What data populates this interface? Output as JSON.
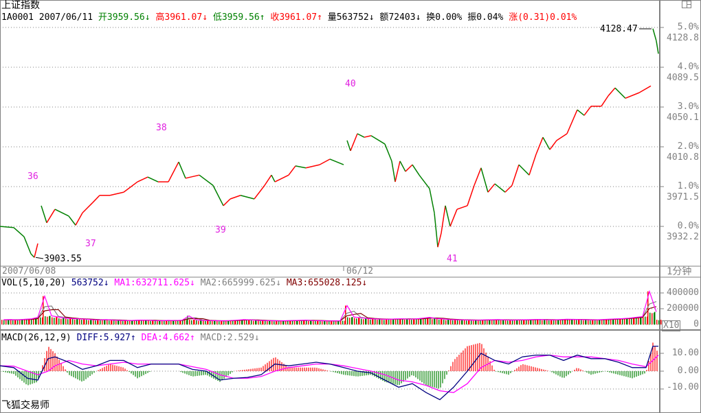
{
  "header": {
    "title": "上证指数",
    "code": "1A0001",
    "date": "2007/06/11",
    "open_label": "开",
    "open": "3959.56",
    "open_arrow": "↓",
    "high_label": "高",
    "high": "3961.07",
    "high_arrow": "↓",
    "low_label": "低",
    "low": "3959.56",
    "low_arrow": "↑",
    "close_label": "收",
    "close": "3961.07",
    "close_arrow": "↑",
    "vol_label": "量",
    "vol": "563752",
    "vol_arrow": "↓",
    "amt_label": "额",
    "amt": "72403",
    "amt_arrow": "↓",
    "turnover_label": "换",
    "turnover": "0.00%",
    "amplitude_label": "振",
    "amplitude": "0.04%",
    "change_label": "涨",
    "change": "(0.31)0.01%"
  },
  "time_axis": {
    "start": "2007/06/08",
    "mid": "06/12",
    "period": "1分钟"
  },
  "volume_panel": {
    "title": "VOL(5,10,20)",
    "value": "563752",
    "value_arrow": "↓",
    "ma1": "MA1:632711.625",
    "ma1_arrow": "↓",
    "ma2": "MA2:665999.625",
    "ma2_arrow": "↓",
    "ma3": "MA3:655028.125",
    "ma3_arrow": "↓",
    "scale_button": "X10"
  },
  "macd_panel": {
    "title": "MACD(26,12,9)",
    "diff": "DIFF:5.927",
    "diff_arrow": "↑",
    "dea": "DEA:4.662",
    "dea_arrow": "↑",
    "macd": "MACD:2.529",
    "macd_arrow": "↓"
  },
  "footer": {
    "brand": "飞狐交易师"
  },
  "colors": {
    "up": "#ff0000",
    "down": "#008000",
    "ma1": "#ff00ff",
    "ma2": "#808080",
    "ma3": "#800000",
    "diff": "#000080",
    "dea": "#ff00ff",
    "wave": "#e020e0"
  },
  "chart_data": [
    {
      "type": "line",
      "title": "上证指数 1分钟",
      "base_price": 3932.2,
      "y_axis_pct": [
        "5.0%",
        "4.0%",
        "3.0%",
        "2.0%",
        "1.0%",
        "0.0%"
      ],
      "y_axis_price": [
        "4128.8",
        "4089.5",
        "4050.1",
        "4010.8",
        "3971.5",
        "3932.2"
      ],
      "ylim_pct": [
        -1.0,
        5.6
      ],
      "x": [
        0,
        20,
        35,
        45,
        50,
        55,
        60,
        68,
        80,
        100,
        110,
        120,
        135,
        145,
        160,
        180,
        200,
        215,
        230,
        245,
        260,
        270,
        290,
        310,
        325,
        335,
        350,
        370,
        385,
        395,
        400,
        420,
        430,
        445,
        465,
        480,
        500,
        505,
        510,
        520,
        530,
        540,
        560,
        570,
        575,
        582,
        590,
        600,
        610,
        625,
        632,
        637,
        642,
        648,
        655,
        665,
        680,
        690,
        700,
        710,
        720,
        735,
        745,
        755,
        770,
        780,
        790,
        800,
        810,
        825,
        840,
        850,
        860,
        875,
        885,
        895,
        910,
        930,
        947,
        950,
        955,
        958
      ],
      "pct": [
        0,
        -0.03,
        -0.26,
        -0.69,
        -0.78,
        -0.43,
        0.52,
        0.09,
        0.43,
        0.26,
        0.03,
        0.34,
        0.6,
        0.78,
        0.78,
        0.86,
        1.12,
        1.24,
        1.12,
        1.12,
        1.62,
        1.21,
        1.29,
        1.03,
        0.52,
        0.69,
        0.78,
        0.69,
        1.03,
        1.29,
        1.12,
        1.29,
        1.52,
        1.47,
        1.55,
        1.69,
        1.55,
        2.16,
        1.9,
        2.33,
        2.24,
        2.28,
        2.07,
        1.64,
        1.12,
        1.64,
        1.38,
        1.55,
        1.29,
        0.95,
        0.34,
        -0.52,
        -0.17,
        0.52,
        0.0,
        0.43,
        0.52,
        1.03,
        1.47,
        0.86,
        1.07,
        0.86,
        1.03,
        1.55,
        1.29,
        1.81,
        2.24,
        1.93,
        2.16,
        2.33,
        2.93,
        2.79,
        3.02,
        3.02,
        3.28,
        3.48,
        3.22,
        3.36,
        3.53,
        4.97,
        4.66,
        4.34
      ],
      "annotations": [
        {
          "text": "3903.55",
          "kind": "low"
        },
        {
          "text": "4128.47",
          "kind": "high"
        }
      ],
      "waves": [
        "36",
        "37",
        "38",
        "39",
        "40",
        "41"
      ]
    },
    {
      "type": "bar",
      "title": "VOL(5,10,20)",
      "y_ticks": [
        "400000",
        "200000",
        "0"
      ],
      "ylim": [
        0,
        400000
      ],
      "x_step": 10,
      "values": [
        60000,
        62000,
        58000,
        65000,
        70000,
        90000,
        360000,
        110000,
        95000,
        80000,
        75000,
        70000,
        68000,
        60000,
        58000,
        62000,
        55000,
        52000,
        50000,
        52000,
        56000,
        54000,
        50000,
        48000,
        52000,
        50000,
        55000,
        110000,
        60000,
        52000,
        50000,
        48000,
        46000,
        50000,
        55000,
        62000,
        58000,
        52000,
        50000,
        48000,
        46000,
        48000,
        50000,
        52000,
        55000,
        50000,
        48000,
        46000,
        45000,
        48000,
        240000,
        95000,
        85000,
        75000,
        70000,
        68000,
        65000,
        70000,
        72000,
        68000,
        70000,
        80000,
        90000,
        75000,
        70000,
        62000,
        60000,
        58000,
        56000,
        55000,
        58000,
        60000,
        62000,
        58000,
        56000,
        58000,
        60000,
        62000,
        64000,
        60000,
        58000,
        62000,
        66000,
        64000,
        62000,
        60000,
        58000,
        62000,
        66000,
        70000,
        74000,
        80000,
        90000,
        100000,
        420000,
        160000
      ]
    },
    {
      "type": "line",
      "title": "MACD(26,12,9)",
      "y_ticks": [
        "10.00",
        "0.00",
        "-10.00"
      ],
      "ylim": [
        -20,
        20
      ],
      "x": [
        0,
        20,
        40,
        55,
        70,
        80,
        100,
        120,
        140,
        160,
        180,
        200,
        220,
        240,
        260,
        280,
        300,
        320,
        340,
        360,
        380,
        400,
        420,
        440,
        460,
        480,
        500,
        520,
        540,
        560,
        580,
        600,
        620,
        640,
        660,
        680,
        700,
        720,
        740,
        760,
        780,
        800,
        820,
        840,
        860,
        880,
        900,
        920,
        940,
        950,
        958
      ],
      "diff": [
        3,
        2,
        -4,
        -5,
        7,
        8,
        5,
        1,
        3,
        6,
        6,
        2,
        4,
        4,
        4,
        1,
        0,
        -5,
        -4,
        -3.5,
        -2,
        4,
        3,
        4,
        5,
        4,
        2,
        0,
        -1,
        -5,
        -9,
        -7,
        -12,
        -16,
        -9,
        0,
        10,
        6,
        4,
        8,
        9,
        9,
        6,
        9,
        7,
        7,
        5,
        2,
        2,
        14,
        14
      ],
      "dea": [
        3,
        2.8,
        0,
        -2,
        0,
        3,
        6,
        4,
        3,
        4,
        5,
        4,
        4,
        4,
        4,
        2.5,
        1,
        -2,
        -4,
        -4,
        -3,
        0,
        2,
        3,
        4,
        4,
        3,
        1.5,
        0,
        -2,
        -5,
        -6,
        -8,
        -11,
        -12,
        -7,
        2,
        6,
        5,
        6,
        8,
        9,
        8,
        8,
        8,
        7,
        6,
        4,
        2.5,
        6,
        9
      ]
    }
  ]
}
